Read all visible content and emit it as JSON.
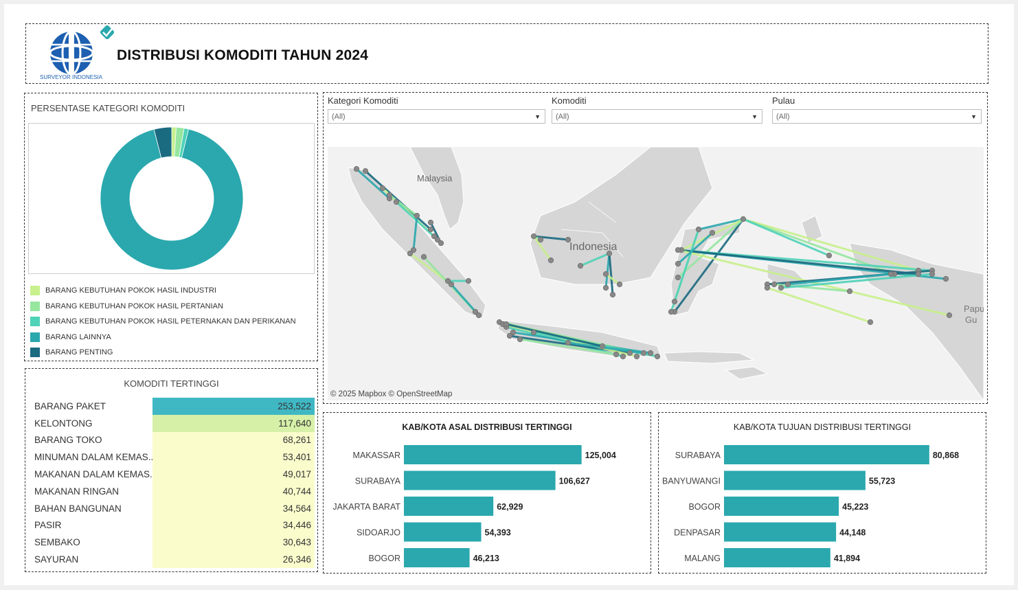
{
  "header": {
    "title": "DISTRIBUSI KOMODITI TAHUN 2024",
    "logo_text": "SURVEYOR INDONESIA"
  },
  "colors": {
    "teal": "#2aa8ae",
    "dark_teal": "#1a6a80",
    "light_green": "#c8f08c",
    "mint": "#96e6a0",
    "aqua": "#4ed2b8",
    "table_highlight": "#3fb8c4",
    "table_second": "#d6f0a8",
    "table_rest": "#fafccc"
  },
  "donut": {
    "title": "PERSENTASE KATEGORI KOMODITI",
    "legend": [
      {
        "label": "BARANG KEBUTUHAN POKOK HASIL INDUSTRI",
        "color": "#c8f08c"
      },
      {
        "label": "BARANG KEBUTUHAN POKOK HASIL PERTANIAN",
        "color": "#96e6a0"
      },
      {
        "label": "BARANG KEBUTUHAN POKOK HASIL PETERNAKAN DAN PERIKANAN",
        "color": "#4ed2b8"
      },
      {
        "label": "BARANG LAINNYA",
        "color": "#2aa8ae"
      },
      {
        "label": "BARANG PENTING",
        "color": "#1a6a80"
      }
    ]
  },
  "top_commodities": {
    "title": "KOMODITI TERTINGGI",
    "rows": [
      {
        "name": "BARANG PAKET",
        "value": "253,522"
      },
      {
        "name": "KELONTONG",
        "value": "117,640"
      },
      {
        "name": "BARANG TOKO",
        "value": "68,261"
      },
      {
        "name": "MINUMAN DALAM KEMAS..",
        "value": "53,401"
      },
      {
        "name": "MAKANAN DALAM KEMAS..",
        "value": "49,017"
      },
      {
        "name": "MAKANAN RINGAN",
        "value": "40,744"
      },
      {
        "name": "BAHAN BANGUNAN",
        "value": "34,564"
      },
      {
        "name": "PASIR",
        "value": "34,446"
      },
      {
        "name": "SEMBAKO",
        "value": "30,643"
      },
      {
        "name": "SAYURAN",
        "value": "26,346"
      }
    ]
  },
  "filters": [
    {
      "label": "Kategori Komoditi",
      "value": "(All)"
    },
    {
      "label": "Komoditi",
      "value": "(All)"
    },
    {
      "label": "Pulau",
      "value": "(All)"
    }
  ],
  "map": {
    "labels": {
      "malaysia": "Malaysia",
      "indonesia": "Indonesia",
      "papua": "Papu",
      "papua2": "Gu"
    },
    "credit": "© 2025 Mapbox  © OpenStreetMap"
  },
  "chart_data": [
    {
      "type": "pie",
      "categories": [
        "BARANG KEBUTUHAN POKOK HASIL INDUSTRI",
        "BARANG KEBUTUHAN POKOK HASIL PERTANIAN",
        "BARANG KEBUTUHAN POKOK HASIL PETERNAKAN DAN PERIKANAN",
        "BARANG LAINNYA",
        "BARANG PENTING"
      ],
      "values": [
        1.0,
        1.8,
        1.0,
        92.2,
        4.0
      ],
      "title": "PERSENTASE KATEGORI KOMODITI"
    },
    {
      "type": "bar",
      "title": "KAB/KOTA ASAL DISTRIBUSI TERTINGGI",
      "categories": [
        "MAKASSAR",
        "SURABAYA",
        "JAKARTA BARAT",
        "SIDOARJO",
        "BOGOR"
      ],
      "values": [
        125004,
        106627,
        62929,
        54393,
        46213
      ],
      "labels": [
        "125,004",
        "106,627",
        "62,929",
        "54,393",
        "46,213"
      ],
      "xlim": [
        0,
        145000
      ]
    },
    {
      "type": "bar",
      "title": "KAB/KOTA TUJUAN DISTRIBUSI TERTINGGI",
      "categories": [
        "SURABAYA",
        "BANYUWANGI",
        "BOGOR",
        "DENPASAR",
        "MALANG"
      ],
      "values": [
        80868,
        55723,
        45223,
        44148,
        41894
      ],
      "labels": [
        "80,868",
        "55,723",
        "45,223",
        "44,148",
        "41,894"
      ],
      "xlim": [
        0,
        92000
      ]
    }
  ]
}
